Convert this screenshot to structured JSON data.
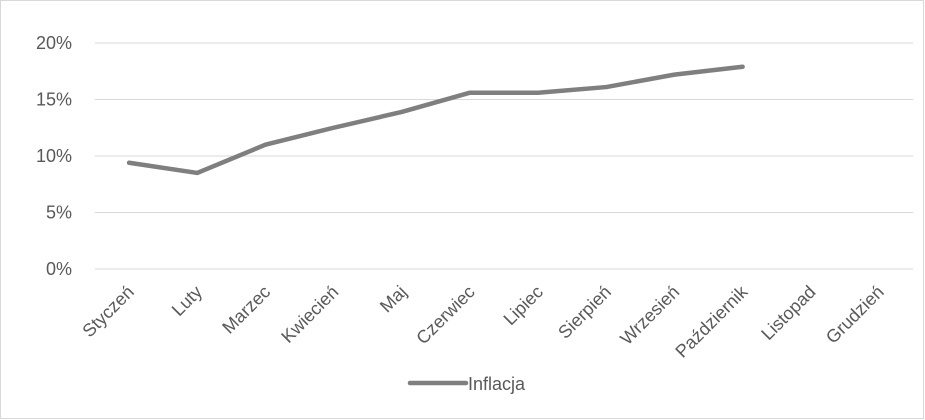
{
  "chart_data": {
    "type": "line",
    "categories": [
      "Styczeń",
      "Luty",
      "Marzec",
      "Kwiecień",
      "Maj",
      "Czerwiec",
      "Lipiec",
      "Sierpień",
      "Wrzesień",
      "Październik",
      "Listopad",
      "Grudzień"
    ],
    "series": [
      {
        "name": "Inflacja",
        "color": "#7f7f7f",
        "values": [
          9.4,
          8.5,
          11.0,
          12.5,
          13.9,
          15.6,
          15.6,
          16.1,
          17.2,
          17.9,
          null,
          null
        ]
      }
    ],
    "y_ticks": [
      "0%",
      "5%",
      "10%",
      "15%",
      "20%"
    ],
    "ylim": [
      0,
      20
    ],
    "grid": true,
    "legend_position": "bottom"
  }
}
